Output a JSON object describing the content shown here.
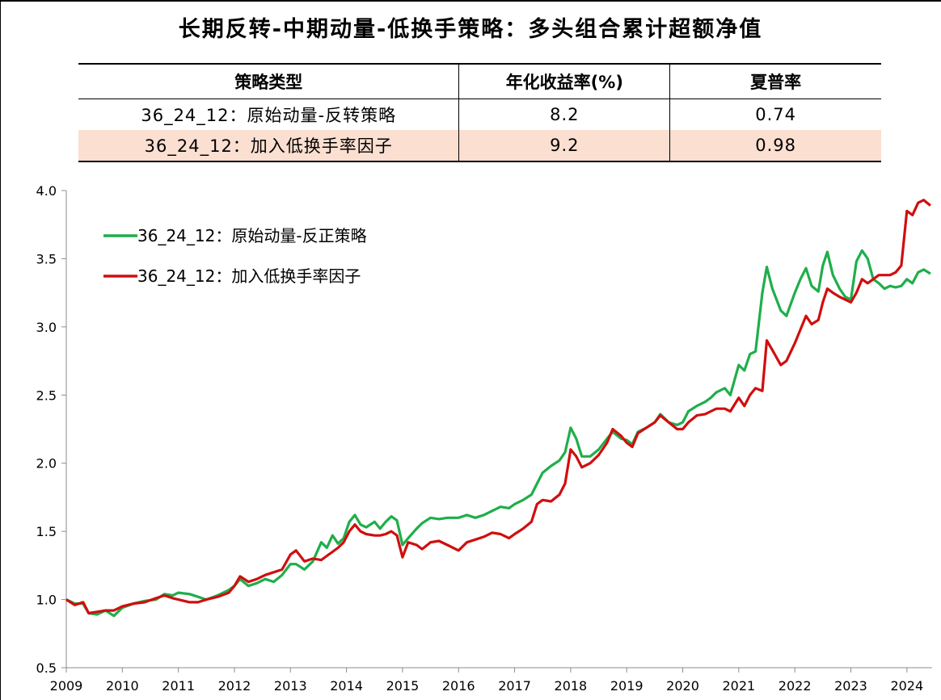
{
  "title": "长期反转-中期动量-低换手策略：多头组合累计超额净值",
  "table": {
    "headers": [
      "策略类型",
      "年化收益率(%)",
      "夏普率"
    ],
    "rows": [
      {
        "name": "36_24_12：原始动量-反转策略",
        "ret": "8.2",
        "sharpe": "0.74"
      },
      {
        "name": "36_24_12：加入低换手率因子",
        "ret": "9.2",
        "sharpe": "0.98"
      }
    ]
  },
  "chart_data": {
    "type": "line",
    "title": "长期反转-中期动量-低换手策略：多头组合累计超额净值",
    "xlabel": "",
    "ylabel": "",
    "xlim": [
      2009,
      2024.45
    ],
    "ylim": [
      0.5,
      4.0
    ],
    "y_ticks": [
      "0.5",
      "1.0",
      "1.5",
      "2.0",
      "2.5",
      "3.0",
      "3.5",
      "4.0"
    ],
    "x_ticks": [
      "2009",
      "2010",
      "2011",
      "2012",
      "2013",
      "2014",
      "2015",
      "2016",
      "2017",
      "2018",
      "2019",
      "2020",
      "2021",
      "2022",
      "2023",
      "2024"
    ],
    "legend_position": "top-left",
    "series": [
      {
        "name": "36_24_12：原始动量-反正策略",
        "color": "#1fae4b",
        "points": [
          [
            2009.0,
            1.0
          ],
          [
            2009.15,
            0.97
          ],
          [
            2009.3,
            0.97
          ],
          [
            2009.4,
            0.9
          ],
          [
            2009.55,
            0.89
          ],
          [
            2009.7,
            0.92
          ],
          [
            2009.85,
            0.88
          ],
          [
            2010.0,
            0.94
          ],
          [
            2010.2,
            0.97
          ],
          [
            2010.4,
            0.99
          ],
          [
            2010.6,
            1.0
          ],
          [
            2010.75,
            1.04
          ],
          [
            2010.9,
            1.03
          ],
          [
            2011.0,
            1.05
          ],
          [
            2011.2,
            1.04
          ],
          [
            2011.35,
            1.02
          ],
          [
            2011.5,
            1.0
          ],
          [
            2011.7,
            1.03
          ],
          [
            2011.9,
            1.07
          ],
          [
            2012.0,
            1.1
          ],
          [
            2012.1,
            1.15
          ],
          [
            2012.25,
            1.1
          ],
          [
            2012.4,
            1.12
          ],
          [
            2012.55,
            1.15
          ],
          [
            2012.7,
            1.13
          ],
          [
            2012.85,
            1.18
          ],
          [
            2013.0,
            1.26
          ],
          [
            2013.1,
            1.26
          ],
          [
            2013.25,
            1.22
          ],
          [
            2013.4,
            1.28
          ],
          [
            2013.55,
            1.42
          ],
          [
            2013.65,
            1.38
          ],
          [
            2013.75,
            1.47
          ],
          [
            2013.85,
            1.41
          ],
          [
            2013.95,
            1.45
          ],
          [
            2014.05,
            1.57
          ],
          [
            2014.15,
            1.62
          ],
          [
            2014.25,
            1.55
          ],
          [
            2014.35,
            1.53
          ],
          [
            2014.5,
            1.57
          ],
          [
            2014.6,
            1.52
          ],
          [
            2014.7,
            1.57
          ],
          [
            2014.8,
            1.61
          ],
          [
            2014.9,
            1.58
          ],
          [
            2015.0,
            1.4
          ],
          [
            2015.1,
            1.45
          ],
          [
            2015.25,
            1.52
          ],
          [
            2015.35,
            1.56
          ],
          [
            2015.5,
            1.6
          ],
          [
            2015.65,
            1.59
          ],
          [
            2015.8,
            1.6
          ],
          [
            2016.0,
            1.6
          ],
          [
            2016.15,
            1.62
          ],
          [
            2016.3,
            1.6
          ],
          [
            2016.45,
            1.62
          ],
          [
            2016.6,
            1.65
          ],
          [
            2016.75,
            1.68
          ],
          [
            2016.9,
            1.67
          ],
          [
            2017.0,
            1.7
          ],
          [
            2017.15,
            1.73
          ],
          [
            2017.3,
            1.77
          ],
          [
            2017.4,
            1.85
          ],
          [
            2017.5,
            1.93
          ],
          [
            2017.65,
            1.98
          ],
          [
            2017.8,
            2.02
          ],
          [
            2017.9,
            2.08
          ],
          [
            2018.0,
            2.26
          ],
          [
            2018.1,
            2.18
          ],
          [
            2018.2,
            2.05
          ],
          [
            2018.35,
            2.05
          ],
          [
            2018.5,
            2.1
          ],
          [
            2018.65,
            2.18
          ],
          [
            2018.75,
            2.23
          ],
          [
            2018.9,
            2.18
          ],
          [
            2019.0,
            2.17
          ],
          [
            2019.1,
            2.14
          ],
          [
            2019.2,
            2.23
          ],
          [
            2019.35,
            2.26
          ],
          [
            2019.5,
            2.3
          ],
          [
            2019.6,
            2.36
          ],
          [
            2019.75,
            2.3
          ],
          [
            2019.9,
            2.28
          ],
          [
            2020.0,
            2.3
          ],
          [
            2020.1,
            2.38
          ],
          [
            2020.25,
            2.42
          ],
          [
            2020.4,
            2.45
          ],
          [
            2020.5,
            2.48
          ],
          [
            2020.6,
            2.52
          ],
          [
            2020.75,
            2.55
          ],
          [
            2020.85,
            2.5
          ],
          [
            2021.0,
            2.72
          ],
          [
            2021.1,
            2.68
          ],
          [
            2021.2,
            2.8
          ],
          [
            2021.3,
            2.82
          ],
          [
            2021.42,
            3.25
          ],
          [
            2021.5,
            3.44
          ],
          [
            2021.6,
            3.28
          ],
          [
            2021.75,
            3.12
          ],
          [
            2021.85,
            3.08
          ],
          [
            2022.0,
            3.25
          ],
          [
            2022.1,
            3.35
          ],
          [
            2022.2,
            3.43
          ],
          [
            2022.3,
            3.3
          ],
          [
            2022.42,
            3.26
          ],
          [
            2022.5,
            3.45
          ],
          [
            2022.58,
            3.55
          ],
          [
            2022.68,
            3.38
          ],
          [
            2022.8,
            3.28
          ],
          [
            2022.9,
            3.22
          ],
          [
            2023.0,
            3.2
          ],
          [
            2023.1,
            3.48
          ],
          [
            2023.2,
            3.56
          ],
          [
            2023.3,
            3.5
          ],
          [
            2023.4,
            3.35
          ],
          [
            2023.5,
            3.32
          ],
          [
            2023.6,
            3.28
          ],
          [
            2023.7,
            3.3
          ],
          [
            2023.8,
            3.29
          ],
          [
            2023.9,
            3.3
          ],
          [
            2024.0,
            3.35
          ],
          [
            2024.1,
            3.32
          ],
          [
            2024.2,
            3.4
          ],
          [
            2024.3,
            3.42
          ],
          [
            2024.42,
            3.39
          ]
        ]
      },
      {
        "name": "36_24_12：加入低换手率因子",
        "color": "#d00e0e",
        "points": [
          [
            2009.0,
            1.0
          ],
          [
            2009.15,
            0.96
          ],
          [
            2009.3,
            0.98
          ],
          [
            2009.4,
            0.9
          ],
          [
            2009.55,
            0.91
          ],
          [
            2009.7,
            0.92
          ],
          [
            2009.85,
            0.92
          ],
          [
            2010.0,
            0.95
          ],
          [
            2010.2,
            0.97
          ],
          [
            2010.4,
            0.98
          ],
          [
            2010.6,
            1.01
          ],
          [
            2010.75,
            1.03
          ],
          [
            2010.9,
            1.01
          ],
          [
            2011.0,
            1.0
          ],
          [
            2011.2,
            0.98
          ],
          [
            2011.35,
            0.98
          ],
          [
            2011.5,
            1.0
          ],
          [
            2011.7,
            1.02
          ],
          [
            2011.9,
            1.05
          ],
          [
            2012.0,
            1.1
          ],
          [
            2012.1,
            1.17
          ],
          [
            2012.25,
            1.13
          ],
          [
            2012.4,
            1.15
          ],
          [
            2012.55,
            1.18
          ],
          [
            2012.7,
            1.2
          ],
          [
            2012.85,
            1.22
          ],
          [
            2013.0,
            1.33
          ],
          [
            2013.1,
            1.36
          ],
          [
            2013.25,
            1.28
          ],
          [
            2013.4,
            1.3
          ],
          [
            2013.55,
            1.29
          ],
          [
            2013.65,
            1.32
          ],
          [
            2013.75,
            1.35
          ],
          [
            2013.85,
            1.38
          ],
          [
            2013.95,
            1.42
          ],
          [
            2014.05,
            1.5
          ],
          [
            2014.15,
            1.55
          ],
          [
            2014.25,
            1.5
          ],
          [
            2014.35,
            1.48
          ],
          [
            2014.5,
            1.47
          ],
          [
            2014.6,
            1.47
          ],
          [
            2014.7,
            1.48
          ],
          [
            2014.8,
            1.5
          ],
          [
            2014.9,
            1.47
          ],
          [
            2015.0,
            1.31
          ],
          [
            2015.1,
            1.42
          ],
          [
            2015.25,
            1.4
          ],
          [
            2015.35,
            1.37
          ],
          [
            2015.5,
            1.42
          ],
          [
            2015.65,
            1.43
          ],
          [
            2015.8,
            1.4
          ],
          [
            2016.0,
            1.36
          ],
          [
            2016.15,
            1.42
          ],
          [
            2016.3,
            1.44
          ],
          [
            2016.45,
            1.46
          ],
          [
            2016.6,
            1.49
          ],
          [
            2016.75,
            1.48
          ],
          [
            2016.9,
            1.45
          ],
          [
            2017.0,
            1.48
          ],
          [
            2017.15,
            1.52
          ],
          [
            2017.3,
            1.57
          ],
          [
            2017.4,
            1.7
          ],
          [
            2017.5,
            1.73
          ],
          [
            2017.65,
            1.72
          ],
          [
            2017.8,
            1.77
          ],
          [
            2017.9,
            1.85
          ],
          [
            2018.0,
            2.1
          ],
          [
            2018.1,
            2.05
          ],
          [
            2018.2,
            1.97
          ],
          [
            2018.35,
            2.0
          ],
          [
            2018.5,
            2.06
          ],
          [
            2018.65,
            2.15
          ],
          [
            2018.75,
            2.25
          ],
          [
            2018.9,
            2.2
          ],
          [
            2019.0,
            2.15
          ],
          [
            2019.1,
            2.12
          ],
          [
            2019.2,
            2.22
          ],
          [
            2019.35,
            2.26
          ],
          [
            2019.5,
            2.3
          ],
          [
            2019.6,
            2.35
          ],
          [
            2019.75,
            2.3
          ],
          [
            2019.9,
            2.25
          ],
          [
            2020.0,
            2.25
          ],
          [
            2020.1,
            2.3
          ],
          [
            2020.25,
            2.35
          ],
          [
            2020.4,
            2.36
          ],
          [
            2020.5,
            2.38
          ],
          [
            2020.6,
            2.4
          ],
          [
            2020.75,
            2.4
          ],
          [
            2020.85,
            2.38
          ],
          [
            2021.0,
            2.48
          ],
          [
            2021.1,
            2.42
          ],
          [
            2021.2,
            2.5
          ],
          [
            2021.3,
            2.55
          ],
          [
            2021.42,
            2.53
          ],
          [
            2021.5,
            2.9
          ],
          [
            2021.6,
            2.83
          ],
          [
            2021.75,
            2.72
          ],
          [
            2021.85,
            2.75
          ],
          [
            2022.0,
            2.88
          ],
          [
            2022.1,
            2.98
          ],
          [
            2022.2,
            3.08
          ],
          [
            2022.3,
            3.02
          ],
          [
            2022.42,
            3.05
          ],
          [
            2022.5,
            3.18
          ],
          [
            2022.58,
            3.28
          ],
          [
            2022.68,
            3.25
          ],
          [
            2022.8,
            3.22
          ],
          [
            2022.9,
            3.2
          ],
          [
            2023.0,
            3.18
          ],
          [
            2023.1,
            3.25
          ],
          [
            2023.2,
            3.35
          ],
          [
            2023.3,
            3.32
          ],
          [
            2023.4,
            3.35
          ],
          [
            2023.5,
            3.38
          ],
          [
            2023.6,
            3.38
          ],
          [
            2023.7,
            3.38
          ],
          [
            2023.8,
            3.4
          ],
          [
            2023.9,
            3.45
          ],
          [
            2024.0,
            3.85
          ],
          [
            2024.1,
            3.82
          ],
          [
            2024.2,
            3.91
          ],
          [
            2024.3,
            3.93
          ],
          [
            2024.42,
            3.89
          ]
        ]
      }
    ]
  }
}
